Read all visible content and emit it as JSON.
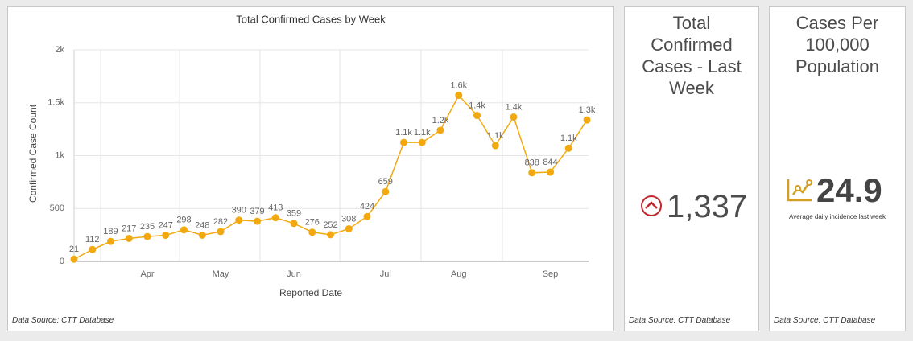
{
  "chart_data": {
    "type": "line",
    "title": "Total Confirmed Cases by Week",
    "x_label": "Reported Date",
    "y_label": "Confirmed Case Count",
    "categories": [
      null,
      null,
      null,
      null,
      "Apr",
      null,
      null,
      null,
      "May",
      null,
      null,
      null,
      "Jun",
      null,
      null,
      null,
      null,
      "Jul",
      null,
      null,
      null,
      "Aug",
      null,
      null,
      null,
      null,
      "Sep",
      null,
      null
    ],
    "values": [
      21,
      112,
      189,
      217,
      235,
      247,
      298,
      248,
      282,
      390,
      379,
      413,
      359,
      276,
      252,
      308,
      424,
      659,
      1125,
      1125,
      1240,
      1570,
      1380,
      1095,
      1365,
      838,
      844,
      1070,
      1337
    ],
    "value_labels": [
      "21",
      "112",
      "189",
      "217",
      "235",
      "247",
      "298",
      "248",
      "282",
      "390",
      "379",
      "413",
      "359",
      "276",
      "252",
      "308",
      "424",
      "659",
      "1.1k",
      "1.1k",
      "1.2k",
      "1.6k",
      "1.4k",
      "1.1k",
      "1.4k",
      "838",
      "844",
      "1.1k",
      "1.3k"
    ],
    "color": "#f2a90f",
    "ylim": [
      0,
      2000
    ],
    "yticks": [
      0,
      500,
      {
        "value": 1000,
        "label": "1k"
      },
      {
        "value": 1500,
        "label": "1.5k"
      },
      {
        "value": 2000,
        "label": "2k"
      }
    ],
    "grid": true,
    "source": "Data Source: CTT Database"
  },
  "panels": [
    {
      "title": "Total Confirmed Cases - Last Week",
      "value": "1,337",
      "source": "Data Source: CTT Database"
    },
    {
      "title": "Cases Per 100,000 Population",
      "value": "24.9",
      "subtitle": "Average daily incidence last week",
      "source": "Data Source: CTT Database"
    }
  ]
}
